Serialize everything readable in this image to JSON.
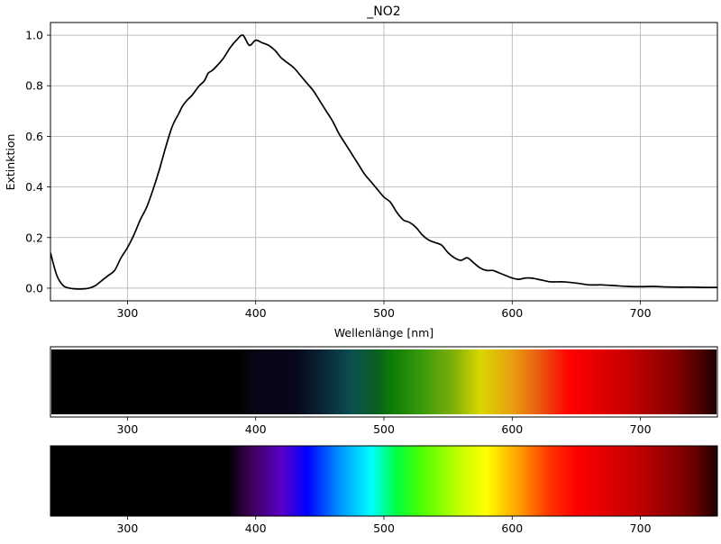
{
  "chart_data": [
    {
      "type": "line",
      "title": "_NO2",
      "xlabel": "Wellenlänge [nm]",
      "ylabel": "Extinktion",
      "xlim": [
        240,
        760
      ],
      "ylim": [
        -0.05,
        1.05
      ],
      "grid": true,
      "x_ticks": [
        300,
        400,
        500,
        600,
        700
      ],
      "x_tick_labels": [
        "300",
        "400",
        "500",
        "600",
        "700"
      ],
      "y_ticks": [
        0.0,
        0.2,
        0.4,
        0.6,
        0.8,
        1.0
      ],
      "y_tick_labels": [
        "0.0",
        "0.2",
        "0.4",
        "0.6",
        "0.8",
        "1.0"
      ],
      "series": [
        {
          "color": "#000000",
          "x": [
            240,
            245,
            250,
            255,
            260,
            265,
            270,
            275,
            280,
            285,
            290,
            295,
            300,
            305,
            310,
            315,
            320,
            325,
            330,
            335,
            340,
            343,
            346,
            350,
            353,
            356,
            360,
            363,
            366,
            370,
            375,
            380,
            385,
            390,
            395,
            400,
            405,
            410,
            415,
            420,
            425,
            430,
            435,
            440,
            445,
            450,
            455,
            460,
            465,
            470,
            475,
            480,
            485,
            490,
            495,
            500,
            505,
            510,
            515,
            520,
            525,
            530,
            535,
            540,
            545,
            550,
            555,
            560,
            565,
            570,
            575,
            580,
            585,
            590,
            595,
            600,
            605,
            610,
            615,
            620,
            625,
            630,
            640,
            650,
            660,
            670,
            680,
            690,
            700,
            710,
            720,
            730,
            740,
            750,
            760
          ],
          "y": [
            0.14,
            0.05,
            0.01,
            0.0,
            -0.003,
            -0.003,
            0.0,
            0.01,
            0.03,
            0.05,
            0.07,
            0.12,
            0.16,
            0.21,
            0.27,
            0.32,
            0.39,
            0.47,
            0.56,
            0.64,
            0.69,
            0.72,
            0.74,
            0.76,
            0.78,
            0.8,
            0.82,
            0.85,
            0.86,
            0.88,
            0.91,
            0.95,
            0.98,
            1.0,
            0.96,
            0.98,
            0.97,
            0.96,
            0.94,
            0.91,
            0.89,
            0.87,
            0.84,
            0.81,
            0.78,
            0.74,
            0.7,
            0.66,
            0.61,
            0.57,
            0.53,
            0.49,
            0.45,
            0.42,
            0.39,
            0.36,
            0.34,
            0.3,
            0.27,
            0.26,
            0.24,
            0.21,
            0.19,
            0.18,
            0.17,
            0.14,
            0.12,
            0.11,
            0.12,
            0.1,
            0.08,
            0.07,
            0.07,
            0.06,
            0.05,
            0.04,
            0.035,
            0.04,
            0.04,
            0.035,
            0.03,
            0.025,
            0.025,
            0.02,
            0.013,
            0.013,
            0.01,
            0.007,
            0.006,
            0.007,
            0.005,
            0.004,
            0.004,
            0.003,
            0.003
          ]
        }
      ]
    },
    {
      "type": "heatmap",
      "description": "absorption-colored spectrum strip",
      "xlim": [
        240,
        760
      ],
      "x_ticks": [
        300,
        400,
        500,
        600,
        700
      ],
      "x_tick_labels": [
        "300",
        "400",
        "500",
        "600",
        "700"
      ],
      "color_stops": [
        {
          "x": 240,
          "color": "#000000"
        },
        {
          "x": 385,
          "color": "#000000"
        },
        {
          "x": 400,
          "color": "#0a0514"
        },
        {
          "x": 430,
          "color": "#08061a"
        },
        {
          "x": 455,
          "color": "#0a2a3a"
        },
        {
          "x": 475,
          "color": "#0c5050"
        },
        {
          "x": 495,
          "color": "#0a6020"
        },
        {
          "x": 505,
          "color": "#0c7a08"
        },
        {
          "x": 530,
          "color": "#3a9a0a"
        },
        {
          "x": 555,
          "color": "#80b008"
        },
        {
          "x": 575,
          "color": "#d8d800"
        },
        {
          "x": 600,
          "color": "#e8a010"
        },
        {
          "x": 620,
          "color": "#e86010"
        },
        {
          "x": 645,
          "color": "#ff0000"
        },
        {
          "x": 690,
          "color": "#c80000"
        },
        {
          "x": 730,
          "color": "#800000"
        },
        {
          "x": 760,
          "color": "#200000"
        }
      ]
    },
    {
      "type": "heatmap",
      "description": "reference visible spectrum strip",
      "xlim": [
        240,
        760
      ],
      "x_ticks": [
        300,
        400,
        500,
        600,
        700
      ],
      "x_tick_labels": [
        "300",
        "400",
        "500",
        "600",
        "700"
      ],
      "color_stops": [
        {
          "x": 240,
          "color": "#000000"
        },
        {
          "x": 378,
          "color": "#000000"
        },
        {
          "x": 395,
          "color": "#3a0050"
        },
        {
          "x": 420,
          "color": "#5a00c8"
        },
        {
          "x": 440,
          "color": "#0000ff"
        },
        {
          "x": 465,
          "color": "#0090ff"
        },
        {
          "x": 490,
          "color": "#00ffff"
        },
        {
          "x": 510,
          "color": "#00ff40"
        },
        {
          "x": 530,
          "color": "#50ff00"
        },
        {
          "x": 560,
          "color": "#c8ff00"
        },
        {
          "x": 580,
          "color": "#ffff00"
        },
        {
          "x": 605,
          "color": "#ffa000"
        },
        {
          "x": 630,
          "color": "#ff3000"
        },
        {
          "x": 650,
          "color": "#ff0000"
        },
        {
          "x": 700,
          "color": "#c00000"
        },
        {
          "x": 740,
          "color": "#700000"
        },
        {
          "x": 760,
          "color": "#200000"
        }
      ]
    }
  ]
}
